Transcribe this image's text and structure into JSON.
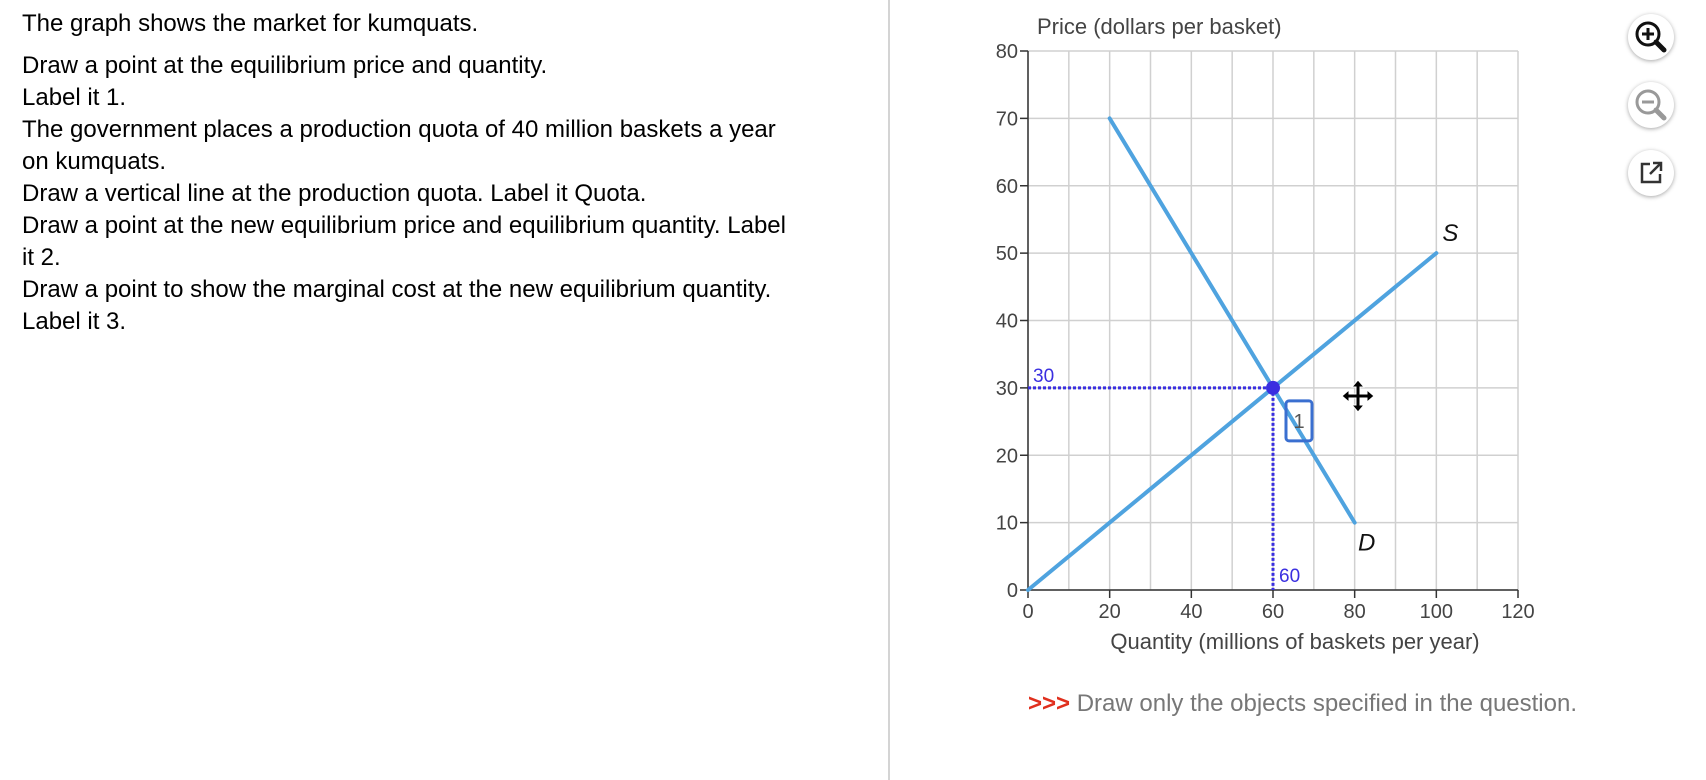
{
  "instructions": {
    "line1": "The graph shows the market for kumquats.",
    "line2": "Draw a point at the equilibrium price and quantity.",
    "line3": "Label it 1.",
    "line4": "The government places a production quota of 40 million baskets a year",
    "line5": "on kumquats.",
    "line6": "Draw a vertical line at the production quota. Label it Quota.",
    "line7": "Draw a point at the new equilibrium price and equilibrium quantity. Label",
    "line8": "it 2.",
    "line9": "Draw a point to show the marginal cost at the new equilibrium quantity.",
    "line10": "Label it 3."
  },
  "note": {
    "arrows": ">>>",
    "text": "Draw only the objects specified in the question."
  },
  "toolbar": {
    "zoom_in": "magnifier-plus-icon",
    "zoom_out": "magnifier-minus-icon",
    "popout": "external-link-icon"
  },
  "chart_data": {
    "type": "line",
    "ylabel": "Price (dollars per basket)",
    "xlabel": "Quantity (millions of baskets per year)",
    "xlim": [
      0,
      120
    ],
    "ylim": [
      0,
      80
    ],
    "x_ticks": [
      0,
      20,
      40,
      60,
      80,
      100,
      120
    ],
    "y_ticks": [
      0,
      10,
      20,
      30,
      40,
      50,
      60,
      70,
      80
    ],
    "grid": true,
    "series": [
      {
        "name": "S",
        "x": [
          0,
          100
        ],
        "y": [
          0,
          50
        ],
        "color": "#4fa3df"
      },
      {
        "name": "D",
        "x": [
          20,
          80
        ],
        "y": [
          70,
          10
        ],
        "color": "#4fa3df"
      }
    ],
    "points": [
      {
        "label": "1",
        "x": 60,
        "y": 30,
        "color": "#3a2fe0"
      }
    ],
    "guide_labels": {
      "x": "60",
      "y": "30"
    }
  }
}
